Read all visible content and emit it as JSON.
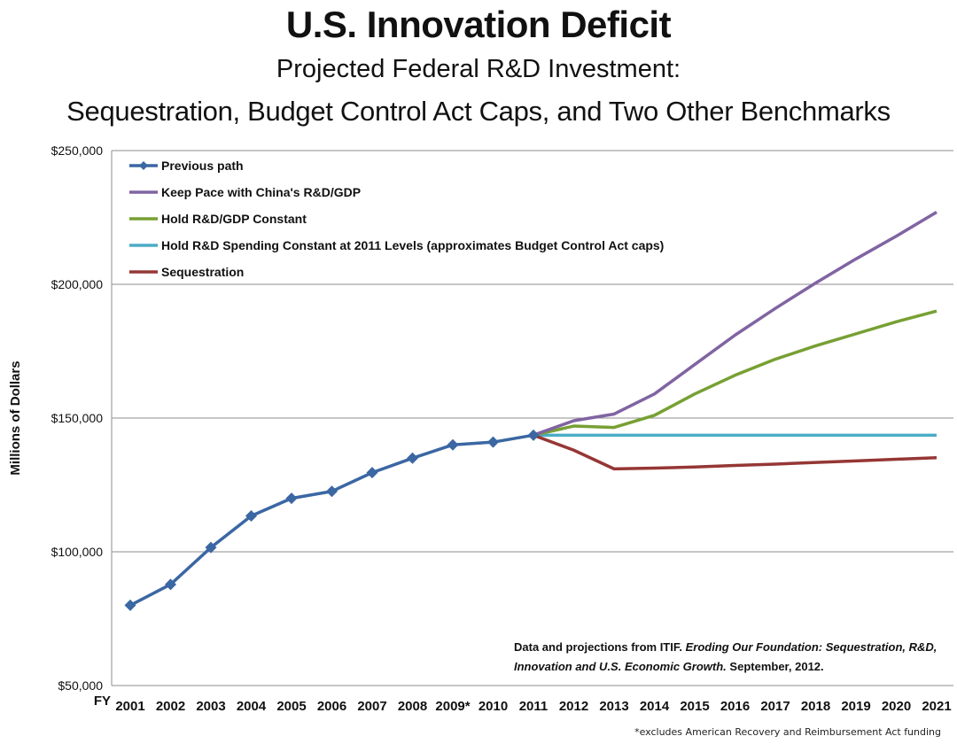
{
  "title": "U.S. Innovation Deficit",
  "subtitle_line1": "Projected Federal R&D Investment:",
  "subtitle_line2": "Sequestration, Budget Control Act Caps, and Two Other Benchmarks",
  "source": {
    "prefix": "Data and projections from ITIF.",
    "work": "Eroding Our Foundation: Sequestration, R&D, Innovation and U.S. Economic Growth.",
    "date": "September, 2012."
  },
  "footnote": "*excludes American Recovery and Reimbursement Act funding",
  "chart_data": {
    "type": "line",
    "ylabel": "Millions of Dollars",
    "xlabel": "",
    "x_axis_prefix": "FY",
    "ylim": [
      50000,
      250000
    ],
    "y_ticks": [
      "$50,000",
      "$100,000",
      "$150,000",
      "$200,000",
      "$250,000"
    ],
    "y_tick_values": [
      50000,
      100000,
      150000,
      200000,
      250000
    ],
    "grid": "horizontal",
    "legend_position": "top-left",
    "categories": [
      "2001",
      "2002",
      "2003",
      "2004",
      "2005",
      "2006",
      "2007",
      "2008",
      "2009*",
      "2010",
      "2011",
      "2012",
      "2013",
      "2014",
      "2015",
      "2016",
      "2017",
      "2018",
      "2019",
      "2020",
      "2021"
    ],
    "series": [
      {
        "name": "Previous path",
        "color": "#3b67a3",
        "marker": "diamond",
        "values": [
          80000,
          87800,
          101600,
          113400,
          120000,
          122600,
          129600,
          135000,
          140000,
          141000,
          143600,
          null,
          null,
          null,
          null,
          null,
          null,
          null,
          null,
          null,
          null
        ]
      },
      {
        "name": "Keep Pace with China's R&D/GDP",
        "color": "#8064a2",
        "marker": "none",
        "values": [
          null,
          null,
          null,
          null,
          null,
          null,
          null,
          null,
          null,
          null,
          143600,
          149000,
          151500,
          159000,
          170000,
          181000,
          191000,
          200500,
          209500,
          218000,
          227000
        ]
      },
      {
        "name": "Hold R&D/GDP Constant",
        "color": "#77a033",
        "marker": "none",
        "values": [
          null,
          null,
          null,
          null,
          null,
          null,
          null,
          null,
          null,
          null,
          143600,
          147000,
          146500,
          151000,
          159000,
          166000,
          172000,
          177000,
          181500,
          186000,
          190000
        ]
      },
      {
        "name": "Hold R&D Spending Constant at 2011 Levels (approximates Budget Control Act caps)",
        "color": "#4bacc6",
        "marker": "none",
        "values": [
          null,
          null,
          null,
          null,
          null,
          null,
          null,
          null,
          null,
          null,
          143600,
          143600,
          143600,
          143600,
          143600,
          143600,
          143600,
          143600,
          143600,
          143600,
          143600
        ]
      },
      {
        "name": "Sequestration",
        "color": "#953735",
        "marker": "none",
        "values": [
          null,
          null,
          null,
          null,
          null,
          null,
          null,
          null,
          null,
          null,
          143600,
          138000,
          131000,
          131300,
          131700,
          132300,
          132800,
          133400,
          134000,
          134600,
          135200
        ]
      }
    ]
  }
}
